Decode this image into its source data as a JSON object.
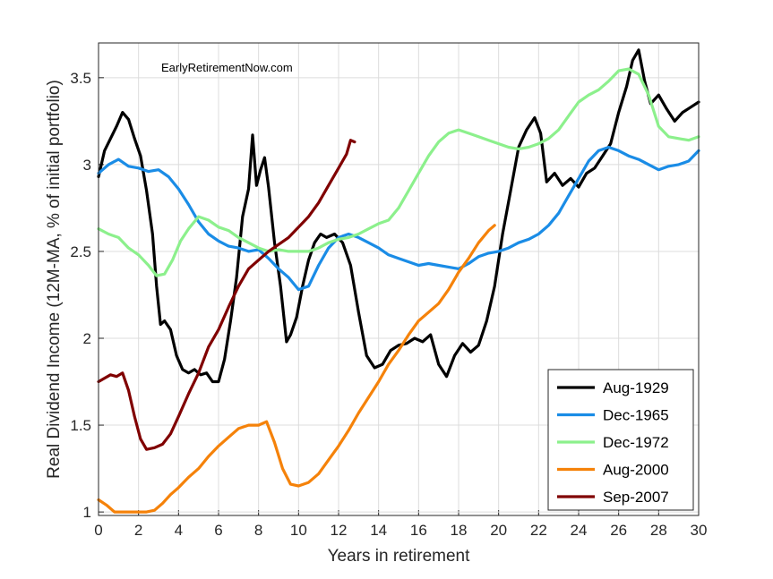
{
  "chart_data": {
    "type": "line",
    "title": "",
    "annotation": "EarlyRetirementNow.com",
    "xlabel": "Years in retirement",
    "ylabel": "Real Dividend Income (12M-MA, % of initial portfolio)",
    "xlim": [
      0,
      30
    ],
    "ylim": [
      0.98,
      3.7
    ],
    "xticks": [
      0,
      2,
      4,
      6,
      8,
      10,
      12,
      14,
      16,
      18,
      20,
      22,
      24,
      26,
      28,
      30
    ],
    "yticks": [
      1,
      1.5,
      2,
      2.5,
      3,
      3.5
    ],
    "ytick_labels": [
      "1",
      "1.5",
      "2",
      "2.5",
      "3",
      "3.5"
    ],
    "grid": true,
    "legend_position": "bottom-right",
    "series": [
      {
        "name": "Aug-1929",
        "color": "#000000",
        "points": [
          [
            0,
            2.93
          ],
          [
            0.3,
            3.08
          ],
          [
            0.6,
            3.15
          ],
          [
            0.9,
            3.22
          ],
          [
            1.2,
            3.3
          ],
          [
            1.5,
            3.26
          ],
          [
            1.8,
            3.15
          ],
          [
            2.1,
            3.05
          ],
          [
            2.4,
            2.85
          ],
          [
            2.7,
            2.6
          ],
          [
            2.9,
            2.3
          ],
          [
            3.1,
            2.08
          ],
          [
            3.3,
            2.1
          ],
          [
            3.6,
            2.05
          ],
          [
            3.9,
            1.9
          ],
          [
            4.2,
            1.82
          ],
          [
            4.5,
            1.8
          ],
          [
            4.8,
            1.82
          ],
          [
            5.1,
            1.79
          ],
          [
            5.4,
            1.8
          ],
          [
            5.7,
            1.75
          ],
          [
            6.0,
            1.75
          ],
          [
            6.3,
            1.88
          ],
          [
            6.6,
            2.1
          ],
          [
            6.9,
            2.35
          ],
          [
            7.2,
            2.7
          ],
          [
            7.5,
            2.86
          ],
          [
            7.7,
            3.17
          ],
          [
            7.9,
            2.88
          ],
          [
            8.1,
            2.97
          ],
          [
            8.3,
            3.04
          ],
          [
            8.5,
            2.87
          ],
          [
            8.8,
            2.55
          ],
          [
            9.1,
            2.3
          ],
          [
            9.4,
            1.98
          ],
          [
            9.6,
            2.02
          ],
          [
            9.9,
            2.12
          ],
          [
            10.2,
            2.3
          ],
          [
            10.5,
            2.45
          ],
          [
            10.8,
            2.55
          ],
          [
            11.1,
            2.6
          ],
          [
            11.4,
            2.58
          ],
          [
            11.8,
            2.6
          ],
          [
            12.2,
            2.55
          ],
          [
            12.6,
            2.42
          ],
          [
            13.0,
            2.15
          ],
          [
            13.4,
            1.9
          ],
          [
            13.8,
            1.83
          ],
          [
            14.2,
            1.85
          ],
          [
            14.6,
            1.93
          ],
          [
            15.0,
            1.96
          ],
          [
            15.4,
            1.97
          ],
          [
            15.8,
            2.0
          ],
          [
            16.2,
            1.98
          ],
          [
            16.6,
            2.02
          ],
          [
            17.0,
            1.85
          ],
          [
            17.4,
            1.78
          ],
          [
            17.8,
            1.9
          ],
          [
            18.2,
            1.97
          ],
          [
            18.6,
            1.92
          ],
          [
            19.0,
            1.96
          ],
          [
            19.4,
            2.1
          ],
          [
            19.8,
            2.3
          ],
          [
            20.2,
            2.6
          ],
          [
            20.6,
            2.85
          ],
          [
            21.0,
            3.1
          ],
          [
            21.4,
            3.2
          ],
          [
            21.8,
            3.27
          ],
          [
            22.1,
            3.18
          ],
          [
            22.4,
            2.9
          ],
          [
            22.8,
            2.95
          ],
          [
            23.2,
            2.88
          ],
          [
            23.6,
            2.92
          ],
          [
            24.0,
            2.87
          ],
          [
            24.4,
            2.95
          ],
          [
            24.8,
            2.98
          ],
          [
            25.2,
            3.05
          ],
          [
            25.6,
            3.12
          ],
          [
            26.0,
            3.3
          ],
          [
            26.4,
            3.45
          ],
          [
            26.7,
            3.6
          ],
          [
            27.0,
            3.66
          ],
          [
            27.3,
            3.48
          ],
          [
            27.6,
            3.35
          ],
          [
            28.0,
            3.4
          ],
          [
            28.4,
            3.32
          ],
          [
            28.8,
            3.25
          ],
          [
            29.2,
            3.3
          ],
          [
            29.6,
            3.33
          ],
          [
            30.0,
            3.36
          ]
        ]
      },
      {
        "name": "Dec-1965",
        "color": "#1a8ce6",
        "points": [
          [
            0,
            2.95
          ],
          [
            0.5,
            3.0
          ],
          [
            1.0,
            3.03
          ],
          [
            1.5,
            2.99
          ],
          [
            2.0,
            2.98
          ],
          [
            2.5,
            2.96
          ],
          [
            3.0,
            2.97
          ],
          [
            3.5,
            2.93
          ],
          [
            4.0,
            2.86
          ],
          [
            4.5,
            2.77
          ],
          [
            5.0,
            2.67
          ],
          [
            5.5,
            2.6
          ],
          [
            6.0,
            2.56
          ],
          [
            6.5,
            2.53
          ],
          [
            7.0,
            2.52
          ],
          [
            7.5,
            2.5
          ],
          [
            8.0,
            2.51
          ],
          [
            8.5,
            2.46
          ],
          [
            9.0,
            2.4
          ],
          [
            9.5,
            2.35
          ],
          [
            10.0,
            2.28
          ],
          [
            10.5,
            2.3
          ],
          [
            11.0,
            2.42
          ],
          [
            11.5,
            2.52
          ],
          [
            12.0,
            2.58
          ],
          [
            12.5,
            2.6
          ],
          [
            13.0,
            2.58
          ],
          [
            13.5,
            2.55
          ],
          [
            14.0,
            2.52
          ],
          [
            14.5,
            2.48
          ],
          [
            15.0,
            2.46
          ],
          [
            15.5,
            2.44
          ],
          [
            16.0,
            2.42
          ],
          [
            16.5,
            2.43
          ],
          [
            17.0,
            2.42
          ],
          [
            17.5,
            2.41
          ],
          [
            18.0,
            2.4
          ],
          [
            18.5,
            2.43
          ],
          [
            19.0,
            2.47
          ],
          [
            19.5,
            2.49
          ],
          [
            20.0,
            2.5
          ],
          [
            20.5,
            2.52
          ],
          [
            21.0,
            2.55
          ],
          [
            21.5,
            2.57
          ],
          [
            22.0,
            2.6
          ],
          [
            22.5,
            2.65
          ],
          [
            23.0,
            2.72
          ],
          [
            23.5,
            2.82
          ],
          [
            24.0,
            2.92
          ],
          [
            24.5,
            3.02
          ],
          [
            25.0,
            3.08
          ],
          [
            25.5,
            3.1
          ],
          [
            26.0,
            3.08
          ],
          [
            26.5,
            3.05
          ],
          [
            27.0,
            3.03
          ],
          [
            27.5,
            3.0
          ],
          [
            28.0,
            2.97
          ],
          [
            28.5,
            2.99
          ],
          [
            29.0,
            3.0
          ],
          [
            29.5,
            3.02
          ],
          [
            30.0,
            3.08
          ]
        ]
      },
      {
        "name": "Dec-1972",
        "color": "#8cf08c",
        "points": [
          [
            0,
            2.63
          ],
          [
            0.5,
            2.6
          ],
          [
            1.0,
            2.58
          ],
          [
            1.5,
            2.52
          ],
          [
            2.0,
            2.48
          ],
          [
            2.5,
            2.42
          ],
          [
            2.9,
            2.36
          ],
          [
            3.3,
            2.37
          ],
          [
            3.7,
            2.45
          ],
          [
            4.1,
            2.56
          ],
          [
            4.5,
            2.63
          ],
          [
            5.0,
            2.7
          ],
          [
            5.5,
            2.68
          ],
          [
            6.0,
            2.64
          ],
          [
            6.5,
            2.62
          ],
          [
            7.0,
            2.58
          ],
          [
            7.5,
            2.55
          ],
          [
            8.0,
            2.52
          ],
          [
            8.5,
            2.5
          ],
          [
            9.0,
            2.51
          ],
          [
            9.5,
            2.5
          ],
          [
            10.0,
            2.5
          ],
          [
            10.5,
            2.5
          ],
          [
            11.0,
            2.52
          ],
          [
            11.5,
            2.55
          ],
          [
            12.0,
            2.57
          ],
          [
            12.5,
            2.58
          ],
          [
            13.0,
            2.6
          ],
          [
            13.5,
            2.63
          ],
          [
            14.0,
            2.66
          ],
          [
            14.5,
            2.68
          ],
          [
            15.0,
            2.75
          ],
          [
            15.5,
            2.85
          ],
          [
            16.0,
            2.95
          ],
          [
            16.5,
            3.05
          ],
          [
            17.0,
            3.13
          ],
          [
            17.5,
            3.18
          ],
          [
            18.0,
            3.2
          ],
          [
            18.5,
            3.18
          ],
          [
            19.0,
            3.16
          ],
          [
            19.5,
            3.14
          ],
          [
            20.0,
            3.12
          ],
          [
            20.5,
            3.1
          ],
          [
            21.0,
            3.09
          ],
          [
            21.5,
            3.1
          ],
          [
            22.0,
            3.12
          ],
          [
            22.5,
            3.15
          ],
          [
            23.0,
            3.2
          ],
          [
            23.5,
            3.28
          ],
          [
            24.0,
            3.36
          ],
          [
            24.5,
            3.4
          ],
          [
            25.0,
            3.43
          ],
          [
            25.5,
            3.48
          ],
          [
            26.0,
            3.54
          ],
          [
            26.5,
            3.55
          ],
          [
            27.0,
            3.52
          ],
          [
            27.5,
            3.4
          ],
          [
            28.0,
            3.22
          ],
          [
            28.5,
            3.16
          ],
          [
            29.0,
            3.15
          ],
          [
            29.5,
            3.14
          ],
          [
            30.0,
            3.16
          ]
        ]
      },
      {
        "name": "Aug-2000",
        "color": "#f5820a",
        "points": [
          [
            0,
            1.07
          ],
          [
            0.4,
            1.04
          ],
          [
            0.8,
            1.0
          ],
          [
            1.2,
            1.0
          ],
          [
            1.6,
            1.0
          ],
          [
            2.0,
            1.0
          ],
          [
            2.4,
            1.0
          ],
          [
            2.8,
            1.01
          ],
          [
            3.2,
            1.05
          ],
          [
            3.6,
            1.1
          ],
          [
            4.0,
            1.14
          ],
          [
            4.5,
            1.2
          ],
          [
            5.0,
            1.25
          ],
          [
            5.5,
            1.32
          ],
          [
            6.0,
            1.38
          ],
          [
            6.5,
            1.43
          ],
          [
            7.0,
            1.48
          ],
          [
            7.5,
            1.5
          ],
          [
            8.0,
            1.5
          ],
          [
            8.4,
            1.52
          ],
          [
            8.8,
            1.4
          ],
          [
            9.2,
            1.25
          ],
          [
            9.6,
            1.16
          ],
          [
            10.0,
            1.15
          ],
          [
            10.5,
            1.17
          ],
          [
            11.0,
            1.22
          ],
          [
            11.5,
            1.3
          ],
          [
            12.0,
            1.38
          ],
          [
            12.5,
            1.47
          ],
          [
            13.0,
            1.57
          ],
          [
            13.5,
            1.66
          ],
          [
            14.0,
            1.75
          ],
          [
            14.5,
            1.85
          ],
          [
            15.0,
            1.93
          ],
          [
            15.5,
            2.02
          ],
          [
            16.0,
            2.1
          ],
          [
            16.5,
            2.15
          ],
          [
            17.0,
            2.2
          ],
          [
            17.5,
            2.28
          ],
          [
            18.0,
            2.38
          ],
          [
            18.5,
            2.46
          ],
          [
            19.0,
            2.55
          ],
          [
            19.5,
            2.62
          ],
          [
            19.8,
            2.65
          ]
        ]
      },
      {
        "name": "Sep-2007",
        "color": "#800000",
        "points": [
          [
            0,
            1.75
          ],
          [
            0.3,
            1.77
          ],
          [
            0.6,
            1.79
          ],
          [
            0.9,
            1.78
          ],
          [
            1.2,
            1.8
          ],
          [
            1.5,
            1.7
          ],
          [
            1.8,
            1.55
          ],
          [
            2.1,
            1.42
          ],
          [
            2.4,
            1.36
          ],
          [
            2.8,
            1.37
          ],
          [
            3.2,
            1.39
          ],
          [
            3.6,
            1.45
          ],
          [
            4.0,
            1.55
          ],
          [
            4.5,
            1.68
          ],
          [
            5.0,
            1.8
          ],
          [
            5.5,
            1.95
          ],
          [
            6.0,
            2.05
          ],
          [
            6.5,
            2.18
          ],
          [
            7.0,
            2.3
          ],
          [
            7.5,
            2.4
          ],
          [
            8.0,
            2.45
          ],
          [
            8.5,
            2.5
          ],
          [
            9.0,
            2.54
          ],
          [
            9.5,
            2.58
          ],
          [
            10.0,
            2.64
          ],
          [
            10.5,
            2.7
          ],
          [
            11.0,
            2.78
          ],
          [
            11.5,
            2.88
          ],
          [
            12.0,
            2.98
          ],
          [
            12.4,
            3.06
          ],
          [
            12.6,
            3.14
          ],
          [
            12.8,
            3.13
          ]
        ]
      }
    ]
  }
}
